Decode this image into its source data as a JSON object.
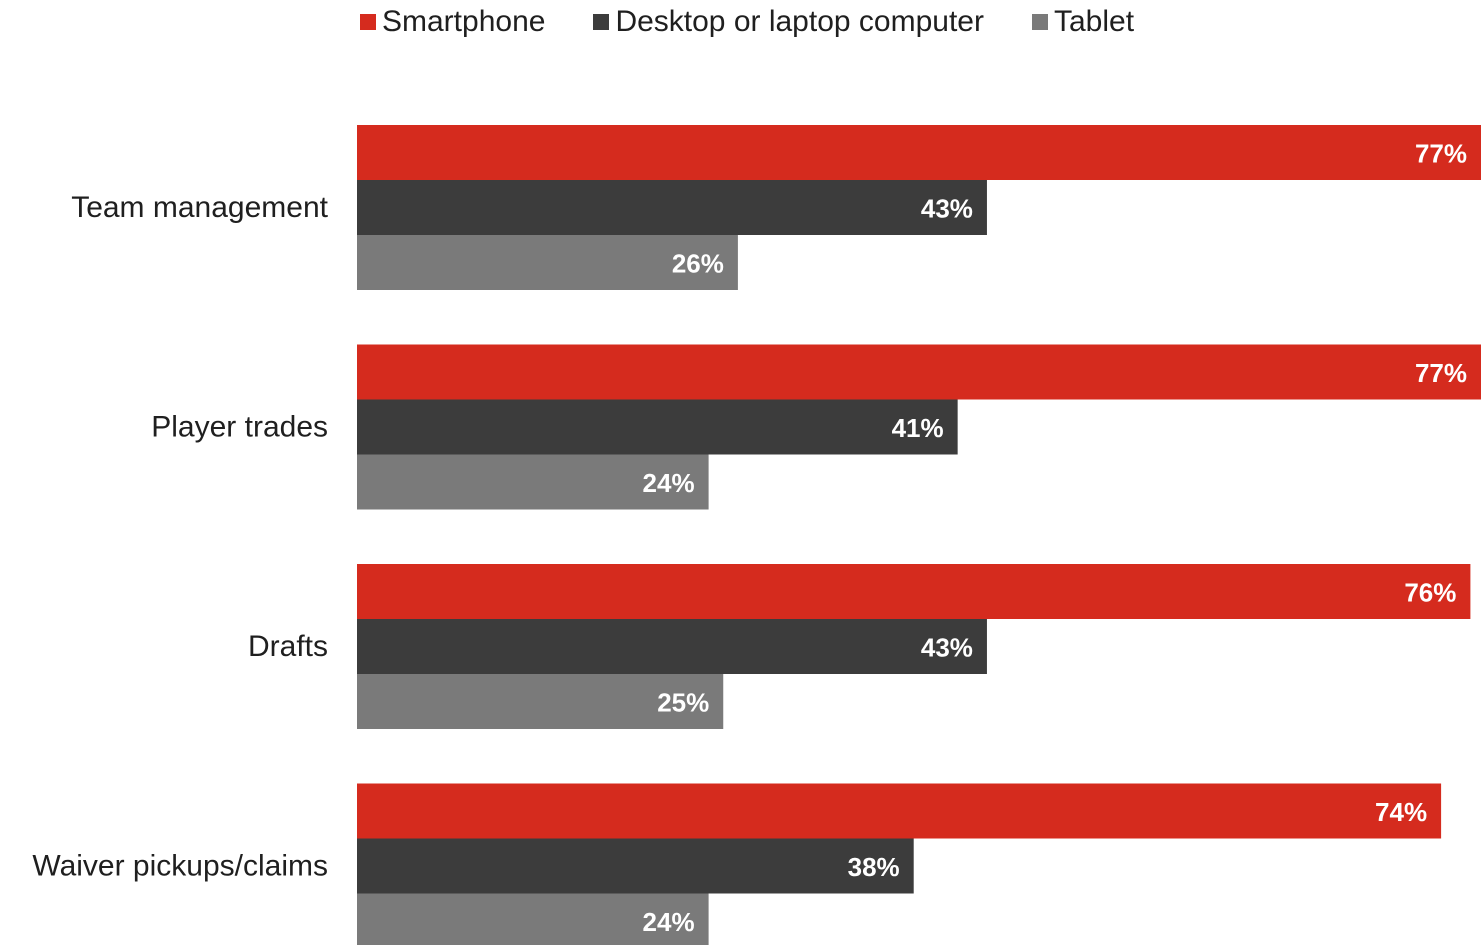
{
  "colors": {
    "smartphone": "#d52b1e",
    "desktop": "#3c3c3c",
    "tablet": "#7a7a7a"
  },
  "legend": [
    {
      "label": "Smartphone"
    },
    {
      "label": "Desktop or laptop computer"
    },
    {
      "label": "Tablet"
    }
  ],
  "chart_data": {
    "type": "bar",
    "orientation": "horizontal",
    "categories": [
      "Team management",
      "Player trades",
      "Drafts",
      "Waiver pickups/claims"
    ],
    "series": [
      {
        "name": "Smartphone",
        "values": [
          77,
          77,
          76,
          74
        ],
        "labels": [
          "77%",
          "77%",
          "76%",
          "74%"
        ]
      },
      {
        "name": "Desktop or laptop computer",
        "values": [
          43,
          41,
          43,
          38
        ],
        "labels": [
          "43%",
          "41%",
          "43%",
          "38%"
        ]
      },
      {
        "name": "Tablet",
        "values": [
          26,
          24,
          25,
          24
        ],
        "labels": [
          "26%",
          "24%",
          "25%",
          "24%"
        ]
      }
    ],
    "title": "",
    "xlabel": "",
    "ylabel": "",
    "legend_position": "top",
    "grid": false,
    "data_labels": "inside-end"
  }
}
